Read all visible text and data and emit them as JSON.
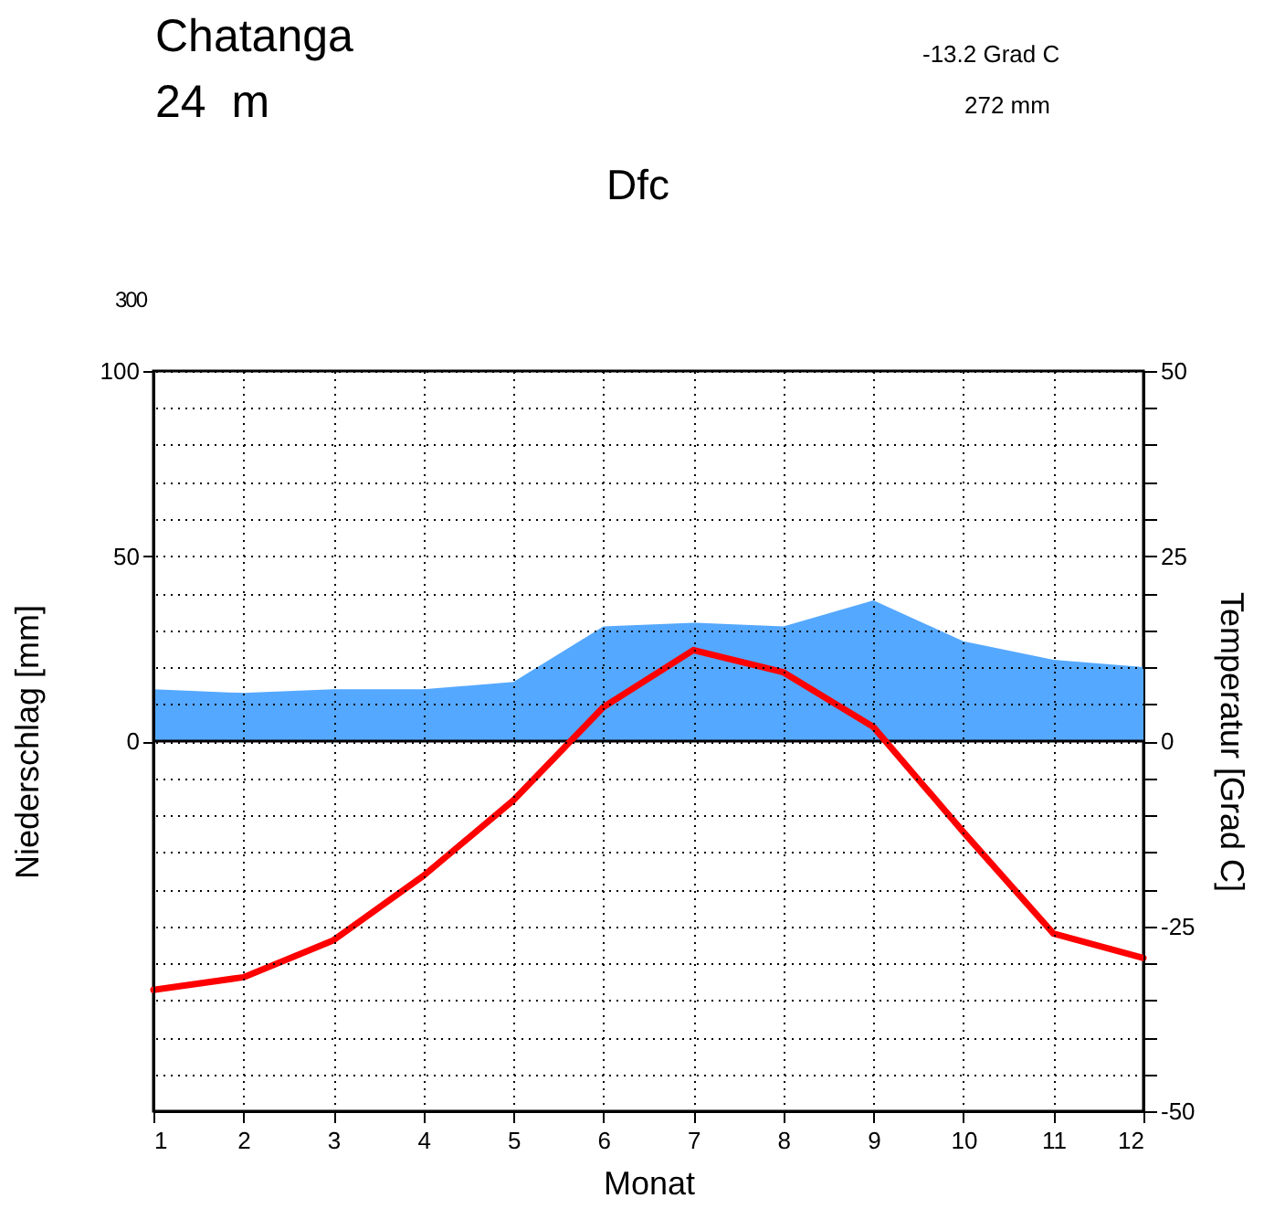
{
  "chart_data": {
    "type": "area",
    "title": "Chatanga",
    "subtitle": "24  m",
    "xlabel": "Monat",
    "ylabel": "Niederschlag [mm]",
    "y2label": "Temperatur [Grad C]",
    "annotations": [
      "-13.2 Grad C",
      "272 mm",
      "Dfc",
      "300"
    ],
    "x": [
      1,
      2,
      3,
      4,
      5,
      6,
      7,
      8,
      9,
      10,
      11,
      12
    ],
    "series": [
      {
        "color": "#55a8ff",
        "values": [
          14,
          13,
          14,
          14,
          16,
          31,
          32,
          31,
          38,
          27,
          22,
          20
        ]
      },
      {
        "type": "line",
        "color": "#ff0000",
        "axis": "y2",
        "values": [
          -33.6,
          -31.9,
          -26.9,
          -18.2,
          -8.0,
          4.6,
          12.3,
          9.3,
          1.9,
          -12.3,
          -26.0,
          -29.3
        ]
      }
    ],
    "xlim": [
      1,
      12
    ],
    "xticks": [
      1,
      2,
      3,
      4,
      5,
      6,
      7,
      8,
      9,
      10,
      11,
      12
    ],
    "ylim": [
      -100,
      100
    ],
    "yticks": [
      0,
      50,
      100
    ],
    "y2lim": [
      -50,
      50
    ],
    "y2ticks": [
      -50,
      {
        "value": -45,
        "label": null
      },
      {
        "value": -40,
        "label": null
      },
      {
        "value": -35,
        "label": null
      },
      {
        "value": -30,
        "label": null
      },
      -25,
      {
        "value": -20,
        "label": null
      },
      {
        "value": -15,
        "label": null
      },
      {
        "value": -10,
        "label": null
      },
      {
        "value": -5,
        "label": null
      },
      0,
      {
        "value": 5,
        "label": null
      },
      {
        "value": 10,
        "label": null
      },
      {
        "value": 15,
        "label": null
      },
      {
        "value": 20,
        "label": null
      },
      25,
      {
        "value": 30,
        "label": null
      },
      {
        "value": 35,
        "label": null
      },
      {
        "value": 40,
        "label": null
      },
      {
        "value": 45,
        "label": null
      },
      50
    ],
    "ref_lines": [
      {
        "axis": "y",
        "value": 0,
        "color": "#000000"
      }
    ],
    "grid": true,
    "legend": false,
    "marker": "none",
    "line_style": "solid"
  }
}
